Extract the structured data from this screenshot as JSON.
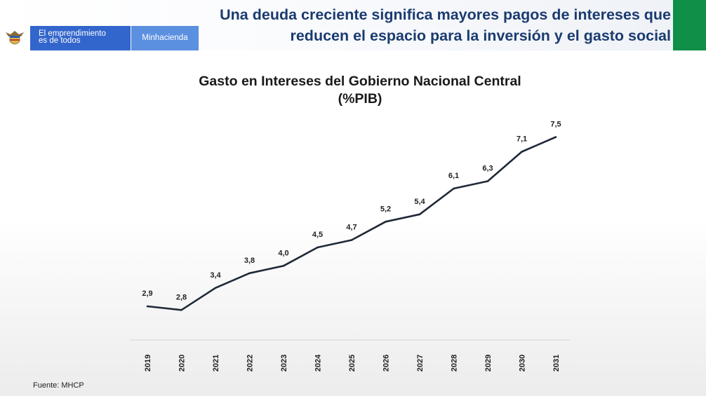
{
  "header": {
    "brand_line1": "El emprendimiento",
    "brand_line2": "es de todos",
    "ministry": "Minhacienda",
    "headline_line1": "Una deuda creciente significa mayores pagos de intereses que",
    "headline_line2": "reducen el espacio para la inversión y el gasto social",
    "brand_color": "#3366cc",
    "ministry_color": "#5b8fe0",
    "accent_color": "#0f8f47",
    "headline_color": "#1b3b6f"
  },
  "chart_data": {
    "type": "line",
    "title_line1": "Gasto en Intereses del Gobierno Nacional Central",
    "title_line2": "(%PIB)",
    "x": [
      "2019",
      "2020",
      "2021",
      "2022",
      "2023",
      "2024",
      "2025",
      "2026",
      "2027",
      "2028",
      "2029",
      "2030",
      "2031"
    ],
    "series": [
      {
        "values": [
          2.9,
          2.8,
          3.4,
          3.8,
          4.0,
          4.5,
          4.7,
          5.2,
          5.4,
          6.1,
          6.3,
          7.1,
          7.5
        ],
        "labels": [
          "2,9",
          "2,8",
          "3,4",
          "3,8",
          "4,0",
          "4,5",
          "4,7",
          "5,2",
          "5,4",
          "6,1",
          "6,3",
          "7,1",
          "7,5"
        ],
        "color": "#1f2937"
      }
    ],
    "xlabel": "",
    "ylabel": "",
    "y_axis_visible": false,
    "grid": false
  },
  "footer": {
    "source": "Fuente: MHCP"
  }
}
